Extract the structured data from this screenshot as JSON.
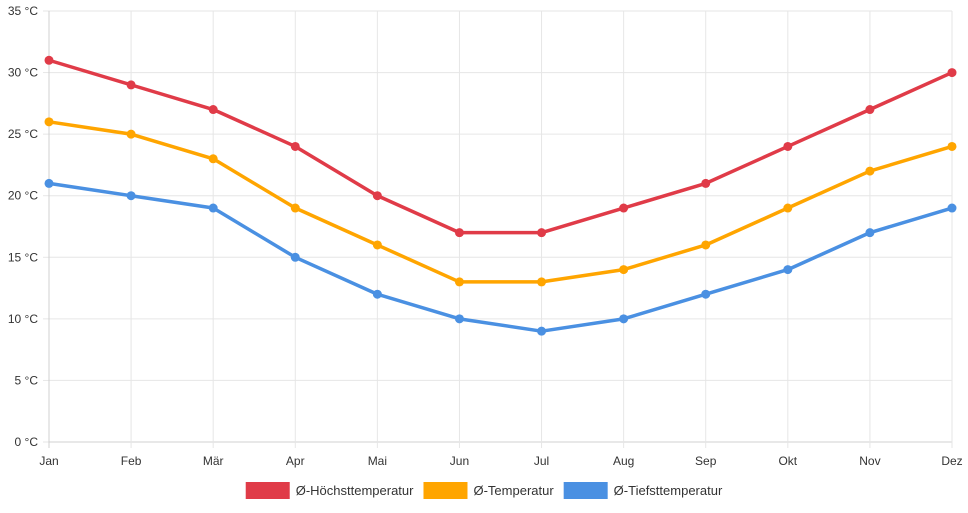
{
  "chart_data": {
    "type": "line",
    "categories": [
      "Jan",
      "Feb",
      "Mär",
      "Apr",
      "Mai",
      "Jun",
      "Jul",
      "Aug",
      "Sep",
      "Okt",
      "Nov",
      "Dez"
    ],
    "yticks": [
      "0 °C",
      "5 °C",
      "10 °C",
      "15 °C",
      "20 °C",
      "25 °C",
      "30 °C",
      "35 °C"
    ],
    "ylim": [
      0,
      35
    ],
    "grid": true,
    "legend_position": "bottom",
    "series": [
      {
        "name": "Ø-Höchsttemperatur",
        "color": "#e03b48",
        "values": [
          31,
          29,
          27,
          24,
          20,
          17,
          17,
          19,
          21,
          24,
          27,
          30
        ]
      },
      {
        "name": "Ø-Temperatur",
        "color": "#ffa500",
        "values": [
          26,
          25,
          23,
          19,
          16,
          13,
          13,
          14,
          16,
          19,
          22,
          24
        ]
      },
      {
        "name": "Ø-Tiefsttemperatur",
        "color": "#4a90e2",
        "values": [
          21,
          20,
          19,
          15,
          12,
          10,
          9,
          10,
          12,
          14,
          17,
          19
        ]
      }
    ]
  }
}
